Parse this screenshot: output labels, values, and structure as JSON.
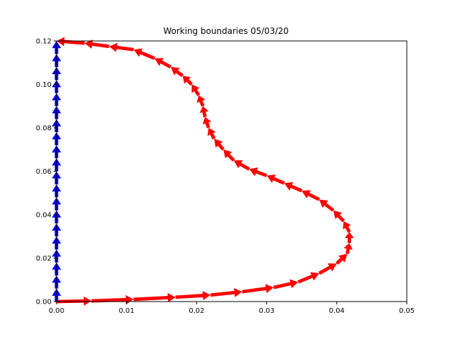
{
  "chart_data": {
    "type": "quiver",
    "title": "Working boundaries 05/03/20",
    "xlabel": "",
    "ylabel": "",
    "xlim": [
      0.0,
      0.05
    ],
    "ylim": [
      0.0,
      0.12
    ],
    "grid": false,
    "xticks": [
      "0.00",
      "0.01",
      "0.02",
      "0.03",
      "0.04",
      "0.05"
    ],
    "yticks": [
      "0.00",
      "0.02",
      "0.04",
      "0.06",
      "0.08",
      "0.10",
      "0.12"
    ],
    "colors": {
      "outer_boundary": "#ff0000",
      "wall": "#0000ff"
    },
    "series": [
      {
        "color": "#ff0000",
        "points": [
          [
            0.0,
            0.0
          ],
          [
            0.005,
            0.0003
          ],
          [
            0.011,
            0.001
          ],
          [
            0.017,
            0.002
          ],
          [
            0.022,
            0.003
          ],
          [
            0.0265,
            0.0045
          ],
          [
            0.031,
            0.0065
          ],
          [
            0.0345,
            0.009
          ],
          [
            0.0375,
            0.013
          ],
          [
            0.04,
            0.0175
          ],
          [
            0.0415,
            0.022
          ],
          [
            0.0418,
            0.027
          ],
          [
            0.0418,
            0.032
          ],
          [
            0.041,
            0.037
          ],
          [
            0.0395,
            0.042
          ],
          [
            0.0375,
            0.047
          ],
          [
            0.035,
            0.051
          ],
          [
            0.0325,
            0.0545
          ],
          [
            0.03,
            0.058
          ],
          [
            0.0275,
            0.061
          ],
          [
            0.0253,
            0.065
          ],
          [
            0.0238,
            0.07
          ],
          [
            0.0225,
            0.075
          ],
          [
            0.0217,
            0.08
          ],
          [
            0.0212,
            0.085
          ],
          [
            0.0209,
            0.09
          ],
          [
            0.0203,
            0.095
          ],
          [
            0.0193,
            0.1
          ],
          [
            0.018,
            0.104
          ],
          [
            0.0163,
            0.108
          ],
          [
            0.014,
            0.112
          ],
          [
            0.011,
            0.116
          ],
          [
            0.0075,
            0.1175
          ],
          [
            0.004,
            0.119
          ],
          [
            0.0,
            0.12
          ]
        ]
      },
      {
        "color": "#0000ff",
        "points": [
          [
            0.0,
            0.0
          ],
          [
            0.0,
            0.006
          ],
          [
            0.0,
            0.012
          ],
          [
            0.0,
            0.018
          ],
          [
            0.0,
            0.024
          ],
          [
            0.0,
            0.03
          ],
          [
            0.0,
            0.036
          ],
          [
            0.0,
            0.042
          ],
          [
            0.0,
            0.048
          ],
          [
            0.0,
            0.054
          ],
          [
            0.0,
            0.06
          ],
          [
            0.0,
            0.066
          ],
          [
            0.0,
            0.072
          ],
          [
            0.0,
            0.078
          ],
          [
            0.0,
            0.084
          ],
          [
            0.0,
            0.09
          ],
          [
            0.0,
            0.096
          ],
          [
            0.0,
            0.102
          ],
          [
            0.0,
            0.108
          ],
          [
            0.0,
            0.114
          ],
          [
            0.0,
            0.12
          ]
        ]
      }
    ]
  }
}
